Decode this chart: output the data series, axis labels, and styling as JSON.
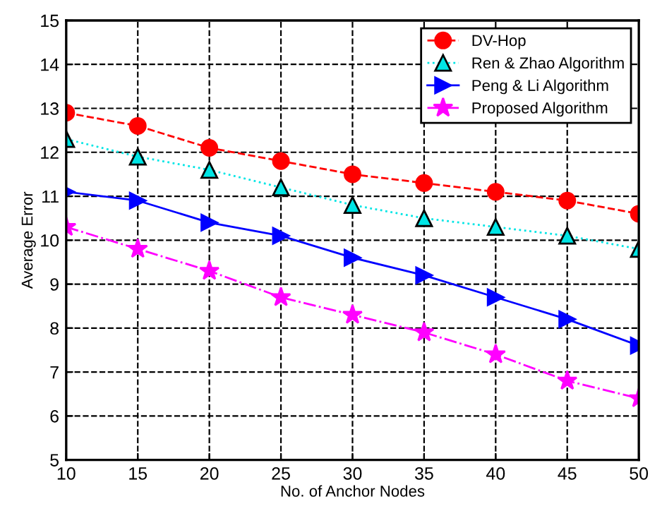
{
  "chart_data": {
    "type": "line",
    "xlabel": "No. of Anchor Nodes",
    "ylabel": "Average Error",
    "x": [
      10,
      15,
      20,
      25,
      30,
      35,
      40,
      45,
      50
    ],
    "series": [
      {
        "name": "DV-Hop",
        "color": "#ff0000",
        "marker": "circle",
        "line_style": "dashed",
        "values": [
          12.9,
          12.6,
          12.1,
          11.8,
          11.5,
          11.3,
          11.1,
          10.9,
          10.6
        ]
      },
      {
        "name": "Ren & Zhao Algorithm",
        "color": "#00e5e5",
        "marker": "triangle",
        "line_style": "dotted",
        "values": [
          12.3,
          11.9,
          11.6,
          11.2,
          10.8,
          10.5,
          10.3,
          10.1,
          9.8
        ]
      },
      {
        "name": "Peng & Li Algorithm",
        "color": "#0000ff",
        "marker": "triangle_right",
        "line_style": "solid",
        "values": [
          11.1,
          10.9,
          10.4,
          10.1,
          9.6,
          9.2,
          8.7,
          8.2,
          7.6
        ]
      },
      {
        "name": "Proposed Algorithm",
        "color": "#ff00ff",
        "marker": "star",
        "line_style": "dashdot",
        "values": [
          10.3,
          9.8,
          9.3,
          8.7,
          8.3,
          7.9,
          7.4,
          6.8,
          6.4
        ]
      }
    ],
    "xlim": [
      10,
      50
    ],
    "ylim": [
      5,
      15
    ],
    "xticks": [
      10,
      15,
      20,
      25,
      30,
      35,
      40,
      45,
      50
    ],
    "yticks": [
      5,
      6,
      7,
      8,
      9,
      10,
      11,
      12,
      13,
      14,
      15
    ],
    "grid": true,
    "legend": "top right"
  }
}
